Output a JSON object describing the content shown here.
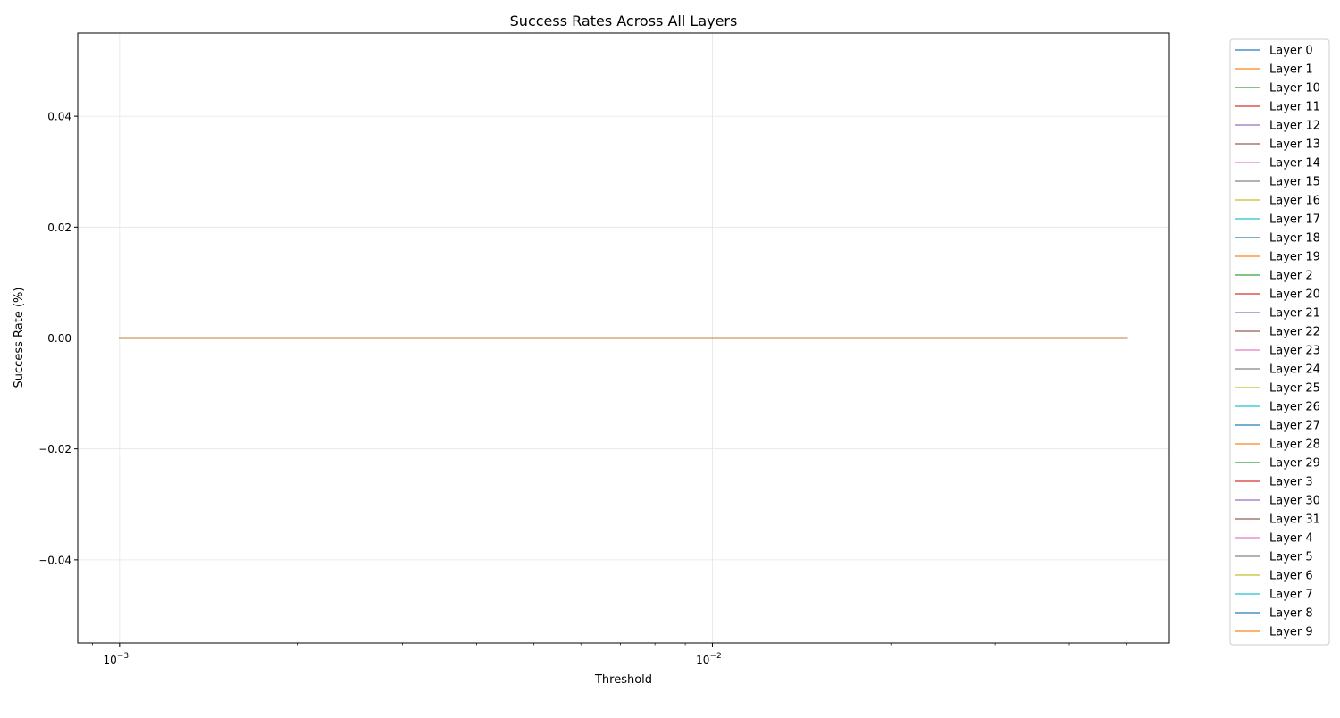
{
  "chart_data": {
    "type": "line",
    "title": "Success Rates Across All Layers",
    "xlabel": "Threshold",
    "ylabel": "Success Rate (%)",
    "xscale": "log",
    "xlim": [
      0.00085,
      0.059
    ],
    "ylim": [
      -0.055,
      0.055
    ],
    "x_tick_labels": [
      {
        "base": "10",
        "exp": "−3",
        "value": 0.001
      },
      {
        "base": "10",
        "exp": "−2",
        "value": 0.01
      }
    ],
    "y_ticks": [
      {
        "label": "−0.04",
        "value": -0.04
      },
      {
        "label": "−0.02",
        "value": -0.02
      },
      {
        "label": "0.00",
        "value": 0.0
      },
      {
        "label": "0.02",
        "value": 0.02
      },
      {
        "label": "0.04",
        "value": 0.04
      }
    ],
    "grid": true,
    "legend_position": "outside-right",
    "x": [
      0.001,
      0.002,
      0.005,
      0.01,
      0.02,
      0.05
    ],
    "series": [
      {
        "name": "Layer 0",
        "color": "#1f77b4",
        "values": [
          0,
          0,
          0,
          0,
          0,
          0
        ]
      },
      {
        "name": "Layer 1",
        "color": "#ff7f0e",
        "values": [
          0,
          0,
          0,
          0,
          0,
          0
        ]
      },
      {
        "name": "Layer 10",
        "color": "#2ca02c",
        "values": [
          0,
          0,
          0,
          0,
          0,
          0
        ]
      },
      {
        "name": "Layer 11",
        "color": "#d62728",
        "values": [
          0,
          0,
          0,
          0,
          0,
          0
        ]
      },
      {
        "name": "Layer 12",
        "color": "#9467bd",
        "values": [
          0,
          0,
          0,
          0,
          0,
          0
        ]
      },
      {
        "name": "Layer 13",
        "color": "#8c564b",
        "values": [
          0,
          0,
          0,
          0,
          0,
          0
        ]
      },
      {
        "name": "Layer 14",
        "color": "#e377c2",
        "values": [
          0,
          0,
          0,
          0,
          0,
          0
        ]
      },
      {
        "name": "Layer 15",
        "color": "#7f7f7f",
        "values": [
          0,
          0,
          0,
          0,
          0,
          0
        ]
      },
      {
        "name": "Layer 16",
        "color": "#bcbd22",
        "values": [
          0,
          0,
          0,
          0,
          0,
          0
        ]
      },
      {
        "name": "Layer 17",
        "color": "#17becf",
        "values": [
          0,
          0,
          0,
          0,
          0,
          0
        ]
      },
      {
        "name": "Layer 18",
        "color": "#1f77b4",
        "values": [
          0,
          0,
          0,
          0,
          0,
          0
        ]
      },
      {
        "name": "Layer 19",
        "color": "#ff7f0e",
        "values": [
          0,
          0,
          0,
          0,
          0,
          0
        ]
      },
      {
        "name": "Layer 2",
        "color": "#2ca02c",
        "values": [
          0,
          0,
          0,
          0,
          0,
          0
        ]
      },
      {
        "name": "Layer 20",
        "color": "#d62728",
        "values": [
          0,
          0,
          0,
          0,
          0,
          0
        ]
      },
      {
        "name": "Layer 21",
        "color": "#9467bd",
        "values": [
          0,
          0,
          0,
          0,
          0,
          0
        ]
      },
      {
        "name": "Layer 22",
        "color": "#8c564b",
        "values": [
          0,
          0,
          0,
          0,
          0,
          0
        ]
      },
      {
        "name": "Layer 23",
        "color": "#e377c2",
        "values": [
          0,
          0,
          0,
          0,
          0,
          0
        ]
      },
      {
        "name": "Layer 24",
        "color": "#7f7f7f",
        "values": [
          0,
          0,
          0,
          0,
          0,
          0
        ]
      },
      {
        "name": "Layer 25",
        "color": "#bcbd22",
        "values": [
          0,
          0,
          0,
          0,
          0,
          0
        ]
      },
      {
        "name": "Layer 26",
        "color": "#17becf",
        "values": [
          0,
          0,
          0,
          0,
          0,
          0
        ]
      },
      {
        "name": "Layer 27",
        "color": "#1f77b4",
        "values": [
          0,
          0,
          0,
          0,
          0,
          0
        ]
      },
      {
        "name": "Layer 28",
        "color": "#ff7f0e",
        "values": [
          0,
          0,
          0,
          0,
          0,
          0
        ]
      },
      {
        "name": "Layer 29",
        "color": "#2ca02c",
        "values": [
          0,
          0,
          0,
          0,
          0,
          0
        ]
      },
      {
        "name": "Layer 3",
        "color": "#d62728",
        "values": [
          0,
          0,
          0,
          0,
          0,
          0
        ]
      },
      {
        "name": "Layer 30",
        "color": "#9467bd",
        "values": [
          0,
          0,
          0,
          0,
          0,
          0
        ]
      },
      {
        "name": "Layer 31",
        "color": "#8c564b",
        "values": [
          0,
          0,
          0,
          0,
          0,
          0
        ]
      },
      {
        "name": "Layer 4",
        "color": "#e377c2",
        "values": [
          0,
          0,
          0,
          0,
          0,
          0
        ]
      },
      {
        "name": "Layer 5",
        "color": "#7f7f7f",
        "values": [
          0,
          0,
          0,
          0,
          0,
          0
        ]
      },
      {
        "name": "Layer 6",
        "color": "#bcbd22",
        "values": [
          0,
          0,
          0,
          0,
          0,
          0
        ]
      },
      {
        "name": "Layer 7",
        "color": "#17becf",
        "values": [
          0,
          0,
          0,
          0,
          0,
          0
        ]
      },
      {
        "name": "Layer 8",
        "color": "#1f77b4",
        "values": [
          0,
          0,
          0,
          0,
          0,
          0
        ]
      },
      {
        "name": "Layer 9",
        "color": "#ff7f0e",
        "values": [
          0,
          0,
          0,
          0,
          0,
          0
        ]
      }
    ]
  }
}
